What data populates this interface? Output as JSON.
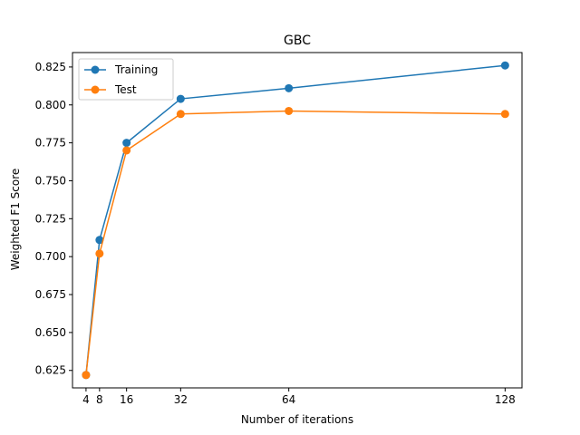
{
  "chart_data": {
    "type": "line",
    "title": "GBC",
    "xlabel": "Number of iterations",
    "ylabel": "Weighted F1 Score",
    "x": [
      4,
      8,
      16,
      32,
      64,
      128
    ],
    "xticks": [
      4,
      8,
      16,
      32,
      64,
      128
    ],
    "xlim": [
      0,
      133
    ],
    "ylim": [
      0.6135,
      0.8345
    ],
    "yticks": [
      0.625,
      0.65,
      0.675,
      0.7,
      0.725,
      0.75,
      0.775,
      0.8,
      0.825
    ],
    "ytick_labels": [
      "0.625",
      "0.650",
      "0.675",
      "0.700",
      "0.725",
      "0.750",
      "0.775",
      "0.800",
      "0.825"
    ],
    "grid": false,
    "legend_position": "top-left",
    "series": [
      {
        "name": "Training",
        "color": "#1f77b4",
        "values": [
          0.622,
          0.711,
          0.775,
          0.804,
          0.811,
          0.826
        ]
      },
      {
        "name": "Test",
        "color": "#ff7f0e",
        "values": [
          0.622,
          0.702,
          0.77,
          0.794,
          0.796,
          0.794
        ]
      }
    ]
  }
}
